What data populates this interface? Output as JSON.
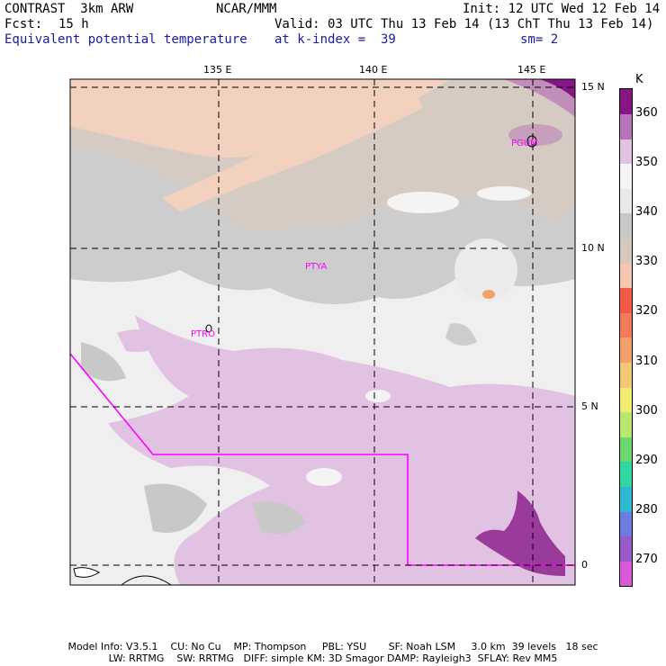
{
  "header": {
    "model": "CONTRAST  3km ARW",
    "org": "NCAR/MMM",
    "init": "Init: 12 UTC Wed 12 Feb 14",
    "fcst_label": "Fcst:",
    "fcst_value": "15 h",
    "valid": "Valid: 03 UTC Thu 13 Feb 14 (13 ChT Thu 13 Feb 14)",
    "field": "Equivalent potential temperature",
    "level": "at k-index =  39",
    "smoothing": "sm= 2"
  },
  "map": {
    "lon_labels": [
      "135 E",
      "140 E",
      "145 E"
    ],
    "lat_labels": [
      "15 N",
      "10 N",
      "5 N",
      "0"
    ],
    "stations": [
      "PGUM",
      "PTYA",
      "PTRO"
    ]
  },
  "colorbar": {
    "unit": "K",
    "labels": [
      "270",
      "280",
      "290",
      "300",
      "310",
      "320",
      "330",
      "340",
      "350",
      "360"
    ],
    "colors": [
      "#d957d9",
      "#9a5ac8",
      "#6e7ce0",
      "#2fb8d2",
      "#2fd8a0",
      "#6ed870",
      "#b8e86e",
      "#f4ec6e",
      "#f4c873",
      "#f4a06a",
      "#f47a5a",
      "#f4584a",
      "#f6c7ae",
      "#d8c8bc",
      "#c8c8c8",
      "#e8e8e8",
      "#f4f4f4",
      "#e2c2e2",
      "#b873b8",
      "#861686"
    ]
  },
  "footer": {
    "line1": "Model Info: V3.5.1    CU: No Cu    MP: Thompson     PBL: YSU       SF: Noah LSM     3.0 km  39 levels   18 sec",
    "line2": "LW: RRTMG    SW: RRTMG   DIFF: simple KM: 3D Smagor DAMP: Rayleigh3  SFLAY: Rev MM5"
  }
}
